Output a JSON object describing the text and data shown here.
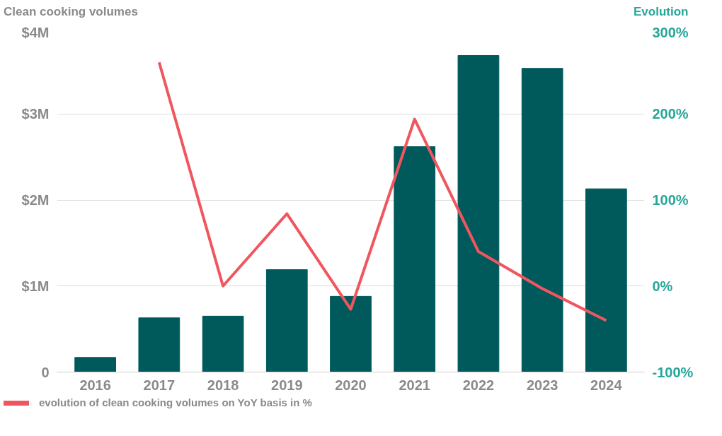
{
  "chart_data": {
    "type": "bar",
    "ylabel": "Clean cooking volumes",
    "y2label": "Evolution",
    "categories": [
      "2016",
      "2017",
      "2018",
      "2019",
      "2020",
      "2021",
      "2022",
      "2023",
      "2024"
    ],
    "series": [
      {
        "name": null,
        "type": "bar",
        "color": "#005a5b",
        "values": [
          0.17,
          0.63,
          0.65,
          1.19,
          0.88,
          2.62,
          3.68,
          3.53,
          2.13
        ]
      },
      {
        "name": "evolution of clean cooking volumes on YoY basis in %",
        "type": "line",
        "axis": "y2",
        "color": "#f0565f",
        "values": [
          null,
          260,
          0,
          84,
          -27,
          194,
          40,
          -3,
          -40
        ]
      }
    ],
    "ylim": [
      0,
      4
    ],
    "yticks": [
      {
        "value": 0,
        "label": "0"
      },
      {
        "value": 1,
        "label": "$1M"
      },
      {
        "value": 2,
        "label": "$2M"
      },
      {
        "value": 3,
        "label": "$3M"
      },
      {
        "value": 4,
        "label": "$4M"
      }
    ],
    "y2lim": [
      -100,
      300
    ],
    "y2ticks": [
      {
        "value": -100,
        "label": "-100%"
      },
      {
        "value": 0,
        "label": "0%"
      },
      {
        "value": 100,
        "label": "100%"
      },
      {
        "value": 200,
        "label": "200%"
      },
      {
        "value": 300,
        "label": "300%"
      }
    ],
    "grid": "y",
    "legend": "bottom left",
    "line_style": "solid",
    "marker": "none"
  }
}
